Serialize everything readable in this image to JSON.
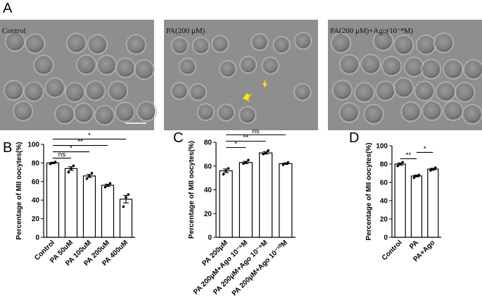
{
  "figure": {
    "panels": [
      "A",
      "B",
      "C",
      "D"
    ],
    "photos": [
      "Control",
      "PA(200 μM)",
      "PA(200 μM)+Ago(10⁻⁸M)"
    ]
  },
  "chart_data": [
    {
      "type": "bar",
      "ylabel": "Percentage of MII oocytes(%)",
      "categories": [
        "Control",
        "PA 50uM",
        "PA 100uM",
        "PA 200uM",
        "PA 400uM"
      ],
      "values": [
        80,
        74,
        66,
        56,
        41
      ],
      "errors": [
        0.6,
        2,
        1.7,
        1.2,
        4
      ],
      "points": [
        [
          79,
          80,
          81
        ],
        [
          70,
          74,
          77
        ],
        [
          63,
          66,
          69
        ],
        [
          54,
          56,
          58
        ],
        [
          33,
          43,
          46
        ]
      ],
      "ylim": [
        0,
        100
      ],
      "yticks": [
        0,
        20,
        40,
        60,
        80,
        100
      ],
      "color": "#ffffff",
      "significance": [
        {
          "label": "ns",
          "between": [
            0,
            1
          ]
        },
        {
          "label": "*",
          "between": [
            0,
            2
          ]
        },
        {
          "label": "**",
          "between": [
            0,
            3
          ]
        },
        {
          "label": "*",
          "between": [
            0,
            4
          ]
        }
      ]
    },
    {
      "type": "bar",
      "ylabel": "Percentage of MII oocytes(%)",
      "categories": [
        "PA 200μM",
        "PA 200μM+Ago 10⁻⁶M",
        "PA 200μM+Ago 10⁻⁸M",
        "PA 200μM+Ago 10⁻¹⁰M"
      ],
      "values": [
        56,
        63,
        71,
        62
      ],
      "errors": [
        1.5,
        1,
        1,
        0.6
      ],
      "points": [
        [
          53,
          56,
          58
        ],
        [
          62,
          63,
          65
        ],
        [
          70,
          71,
          73
        ],
        [
          61,
          62,
          63
        ]
      ],
      "ylim": [
        0,
        80
      ],
      "yticks": [
        0,
        20,
        40,
        60,
        80
      ],
      "color": "#ffffff",
      "significance": [
        {
          "label": "*",
          "between": [
            0,
            1
          ]
        },
        {
          "label": "**",
          "between": [
            0,
            2
          ]
        },
        {
          "label": "ns",
          "between": [
            0,
            3
          ]
        }
      ]
    },
    {
      "type": "bar",
      "ylabel": "Percentage of MII oocytes(%)",
      "categories": [
        "Control",
        "PA",
        "PA+Ago"
      ],
      "values": [
        80,
        67,
        74.5
      ],
      "errors": [
        1.2,
        0.9,
        0.9
      ],
      "points": [
        [
          78,
          80,
          82
        ],
        [
          65,
          67,
          68
        ],
        [
          73,
          74,
          76
        ]
      ],
      "ylim": [
        0,
        100
      ],
      "yticks": [
        0,
        20,
        40,
        60,
        80,
        100
      ],
      "color": "#ffffff",
      "significance": [
        {
          "label": "**",
          "between": [
            0,
            1
          ]
        },
        {
          "label": "*",
          "between": [
            1,
            2
          ]
        }
      ]
    }
  ]
}
